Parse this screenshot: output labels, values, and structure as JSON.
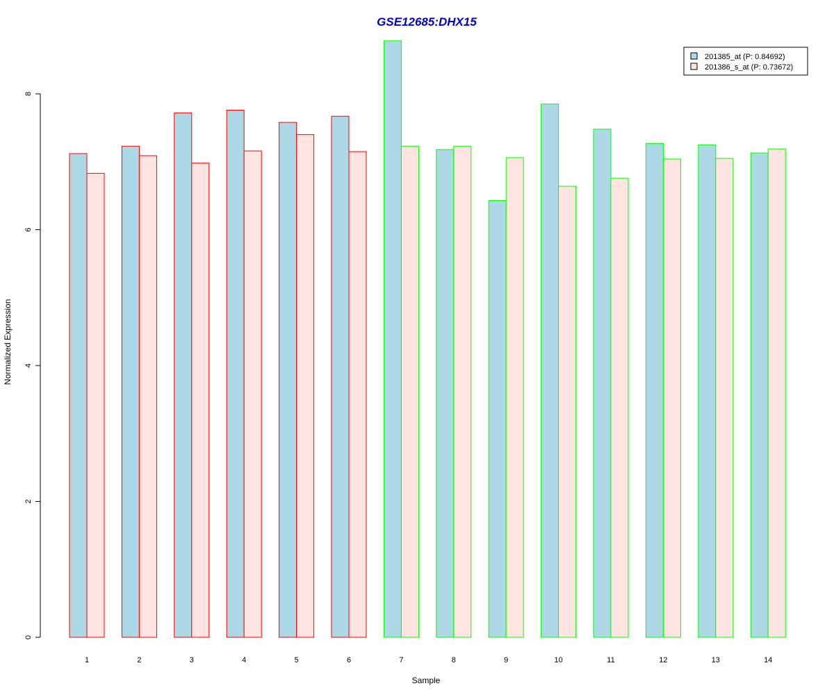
{
  "chart_data": {
    "type": "bar",
    "title": "GSE12685:DHX15",
    "xlabel": "Sample",
    "ylabel": "Normalized Expression",
    "categories": [
      "1",
      "2",
      "3",
      "4",
      "5",
      "6",
      "7",
      "8",
      "9",
      "10",
      "11",
      "12",
      "13",
      "14"
    ],
    "series": [
      {
        "name": "201385_at (P: 0.84692)",
        "fill": "#add8e6",
        "values": [
          7.12,
          7.23,
          7.72,
          7.76,
          7.58,
          7.67,
          8.78,
          7.18,
          6.43,
          7.85,
          7.48,
          7.27,
          7.25,
          7.13
        ]
      },
      {
        "name": "201386_s_at (P: 0.73672)",
        "fill": "#ffe4e1",
        "values": [
          6.83,
          7.09,
          6.98,
          7.16,
          7.4,
          7.15,
          7.23,
          7.23,
          7.06,
          6.64,
          6.76,
          7.04,
          7.05,
          7.19
        ]
      }
    ],
    "group_border_colors": [
      "#ff0000",
      "#ff0000",
      "#ff0000",
      "#ff0000",
      "#ff0000",
      "#ff0000",
      "#00ff00",
      "#00ff00",
      "#00ff00",
      "#00ff00",
      "#00ff00",
      "#00ff00",
      "#00ff00",
      "#00ff00"
    ],
    "yticks": [
      0,
      2,
      4,
      6,
      8
    ],
    "ylim": [
      0,
      8.8
    ],
    "grid": false,
    "legend_position": "top-right",
    "title_color": "#0000cd"
  }
}
